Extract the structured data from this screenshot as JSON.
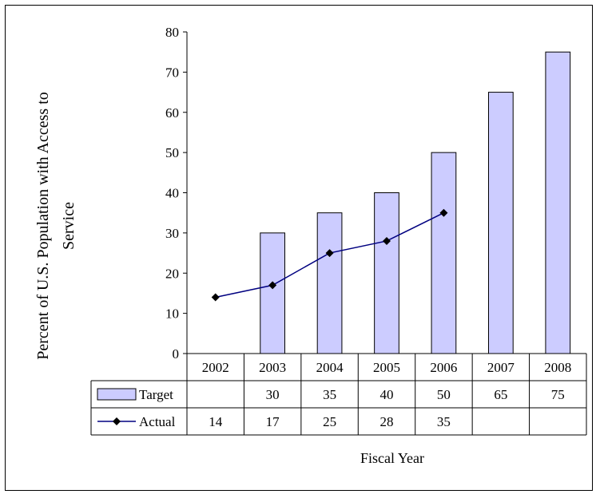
{
  "chart_data": {
    "type": "bar",
    "categories": [
      "2002",
      "2003",
      "2004",
      "2005",
      "2006",
      "2007",
      "2008"
    ],
    "series": [
      {
        "name": "Target",
        "type": "bar",
        "values": [
          null,
          30,
          35,
          40,
          50,
          65,
          75
        ],
        "table_values": [
          "",
          "30",
          "35",
          "40",
          "50",
          "65",
          "75"
        ]
      },
      {
        "name": "Actual",
        "type": "line",
        "values": [
          14,
          17,
          25,
          28,
          35,
          null,
          null
        ],
        "table_values": [
          "14",
          "17",
          "25",
          "28",
          "35",
          "",
          ""
        ]
      }
    ],
    "ylabel_lines": [
      "Percent of U.S. Population with Access to",
      "Service"
    ],
    "xlabel": "Fiscal Year",
    "ylim": [
      0,
      80
    ],
    "yticks": [
      "0",
      "10",
      "20",
      "30",
      "40",
      "50",
      "60",
      "70",
      "80"
    ],
    "grid": false,
    "legend": "data-table",
    "colors": {
      "bar_fill": "#ccccff",
      "bar_stroke": "#000000",
      "line": "#000080",
      "marker": "#000000"
    }
  }
}
